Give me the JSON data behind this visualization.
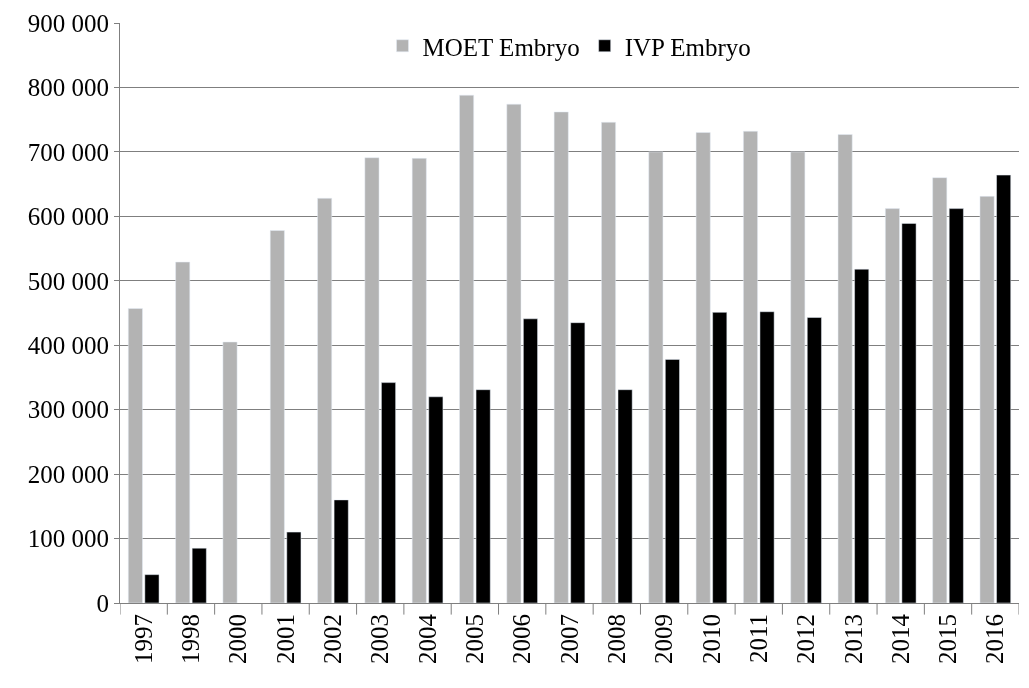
{
  "chart_data": {
    "type": "bar",
    "categories": [
      "1997",
      "1998",
      "2000",
      "2001",
      "2002",
      "2003",
      "2004",
      "2005",
      "2006",
      "2007",
      "2008",
      "2009",
      "2010",
      "2011",
      "2012",
      "2013",
      "2014",
      "2015",
      "2016"
    ],
    "series": [
      {
        "name": "MOET Embryo",
        "color": "#b3b3b3",
        "values": [
          457000,
          529000,
          405000,
          578000,
          628000,
          691000,
          690000,
          788000,
          774000,
          762000,
          746000,
          700000,
          730000,
          732000,
          700000,
          727000,
          612000,
          660000,
          631000
        ]
      },
      {
        "name": "IVP Embryo",
        "color": "#000000",
        "values": [
          44000,
          85000,
          null,
          110000,
          160000,
          342000,
          320000,
          331000,
          441000,
          435000,
          331000,
          378000,
          451000,
          452000,
          443000,
          518000,
          589000,
          612000,
          664000
        ]
      }
    ],
    "ylim": [
      0,
      900000
    ],
    "yticks": [
      0,
      {
        "value": 100000,
        "label": "100 000"
      },
      {
        "value": 200000,
        "label": "200 000"
      },
      {
        "value": 300000,
        "label": "300 000"
      },
      {
        "value": 400000,
        "label": "400 000"
      },
      {
        "value": 500000,
        "label": "500 000"
      },
      {
        "value": 600000,
        "label": "600 000"
      },
      {
        "value": 700000,
        "label": "700 000"
      },
      {
        "value": 800000,
        "label": "800 000"
      },
      {
        "value": 900000,
        "label": "900 000"
      }
    ],
    "grid": "y",
    "legend": "top"
  }
}
